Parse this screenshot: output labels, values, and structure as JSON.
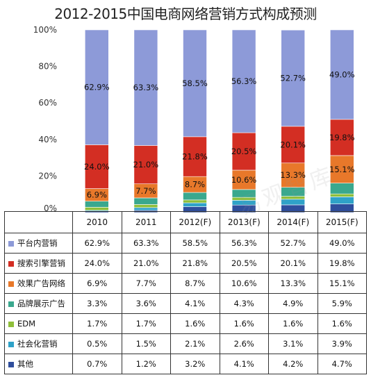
{
  "chart_data": {
    "type": "bar",
    "stacked": true,
    "title": "2012-2015中国电商网络营销方式构成预测",
    "categories": [
      "2010",
      "2011",
      "2012(F)",
      "2013(F)",
      "2014(F)",
      "2015(F)"
    ],
    "y_ticks": [
      "100%",
      "80%",
      "60%",
      "40%",
      "20%",
      "0%"
    ],
    "ylim": [
      0,
      100
    ],
    "grid": false,
    "legend": "table-left",
    "series": [
      {
        "name": "其他",
        "color": "#2f4e9c",
        "values": [
          0.7,
          1.2,
          3.2,
          4.1,
          4.2,
          4.7
        ],
        "labels": [
          "0.7%",
          "1.2%",
          "3.2%",
          "4.1%",
          "4.2%",
          "4.7%"
        ]
      },
      {
        "name": "社会化营销",
        "color": "#2fa2c8",
        "values": [
          0.5,
          1.5,
          2.1,
          2.6,
          3.1,
          3.9
        ],
        "labels": [
          "0.5%",
          "1.5%",
          "2.1%",
          "2.6%",
          "3.1%",
          "3.9%"
        ]
      },
      {
        "name": "EDM",
        "color": "#8fbf3a",
        "values": [
          1.7,
          1.7,
          1.6,
          1.6,
          1.6,
          1.6
        ],
        "labels": [
          "1.7%",
          "1.7%",
          "1.6%",
          "1.6%",
          "1.6%",
          "1.6%"
        ]
      },
      {
        "name": "品牌展示广告",
        "color": "#3aa88e",
        "values": [
          3.3,
          3.6,
          4.1,
          4.3,
          4.9,
          5.9
        ],
        "labels": [
          "3.3%",
          "3.6%",
          "4.1%",
          "4.3%",
          "4.9%",
          "5.9%"
        ]
      },
      {
        "name": "效果广告网络",
        "color": "#e8782a",
        "values": [
          6.9,
          7.7,
          8.7,
          10.6,
          13.3,
          15.1
        ],
        "labels": [
          "6.9%",
          "7.7%",
          "8.7%",
          "10.6%",
          "13.3%",
          "15.1%"
        ]
      },
      {
        "name": "搜索引擎营销",
        "color": "#d32e23",
        "values": [
          24.0,
          21.0,
          21.8,
          20.5,
          20.1,
          19.8
        ],
        "labels": [
          "24.0%",
          "21.0%",
          "21.8%",
          "20.5%",
          "20.1%",
          "19.8%"
        ]
      },
      {
        "name": "平台内营销",
        "color": "#8d9ad8",
        "values": [
          62.9,
          63.3,
          58.5,
          56.3,
          52.7,
          49.0
        ],
        "labels": [
          "62.9%",
          "63.3%",
          "58.5%",
          "56.3%",
          "52.7%",
          "49.0%"
        ]
      }
    ],
    "labeled_series": [
      "效果广告网络",
      "搜索引擎营销",
      "平台内营销"
    ],
    "table_row_order": [
      "平台内营销",
      "搜索引擎营销",
      "效果广告网络",
      "品牌展示广告",
      "EDM",
      "社会化营销",
      "其他"
    ]
  }
}
